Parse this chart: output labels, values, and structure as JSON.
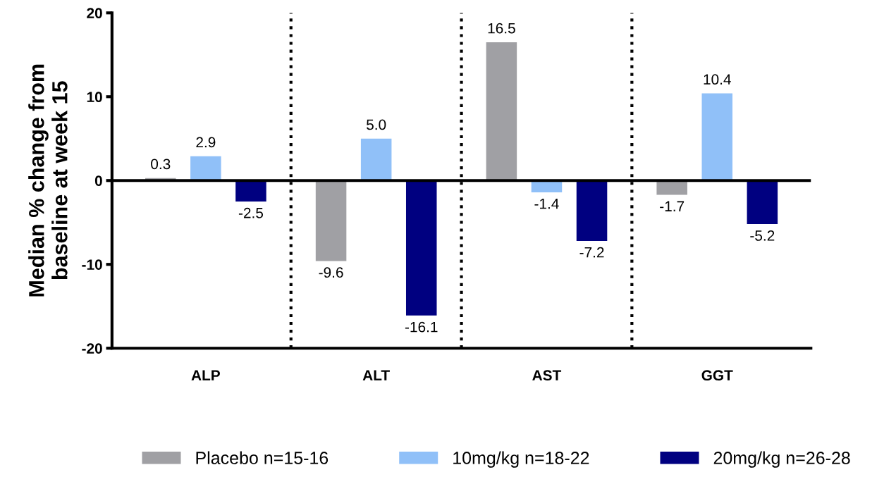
{
  "chart_data": {
    "type": "bar",
    "ylabel": "Median % change from\nbaseline at week 15",
    "categories": [
      "ALP",
      "ALT",
      "AST",
      "GGT"
    ],
    "series": [
      {
        "name": "Placebo n=15-16",
        "color": "#a0a0a4",
        "values": [
          0.3,
          -9.6,
          16.5,
          -1.7
        ],
        "value_labels": [
          "0.3",
          "-9.6",
          "16.5",
          "-1.7"
        ]
      },
      {
        "name": "10mg/kg n=18-22",
        "color": "#90c0f8",
        "values": [
          2.9,
          5.0,
          -1.4,
          10.4
        ],
        "value_labels": [
          "2.9",
          "5.0",
          "-1.4",
          "10.4"
        ]
      },
      {
        "name": "20mg/kg n=26-28",
        "color": "#000080",
        "values": [
          -2.5,
          -16.1,
          -7.2,
          -5.2
        ],
        "value_labels": [
          "-2.5",
          "-16.1",
          "-7.2",
          "-5.2"
        ]
      }
    ],
    "ylim": [
      -20,
      20
    ],
    "yticks": [
      -20,
      -10,
      0,
      10,
      20
    ],
    "ref_lines": [
      {
        "axis": "y",
        "value": 0,
        "color": "#000000",
        "line_style": "solid"
      }
    ],
    "legend": "bottom",
    "grid": false
  }
}
